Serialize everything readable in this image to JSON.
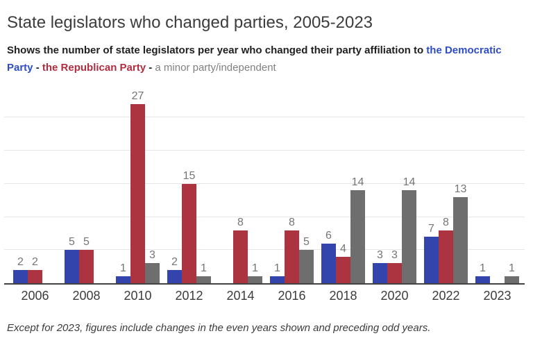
{
  "header": {
    "title": "State legislators who changed parties, 2005-2023",
    "subtitle": {
      "prefix": "Shows the number of state legislators per year who changed their party affiliation to ",
      "democratic": "the Democratic Party",
      "separator": " - ",
      "republican": "the Republican Party",
      "minor": "a minor party/independent"
    }
  },
  "colors": {
    "democratic": "#3345AC",
    "republican": "#AC3340",
    "minor": "#6E6E6E",
    "subtitle_democratic": "#2D4CC8",
    "subtitle_republican": "#B02C3F",
    "subtitle_minor": "#808080",
    "value_label": "#757575",
    "gridline": "#E6E6E6",
    "axis": "#424242"
  },
  "chart_data": {
    "type": "bar",
    "title": "State legislators who changed parties, 2005-2023",
    "xlabel": "",
    "ylabel": "",
    "categories": [
      "2006",
      "2008",
      "2010",
      "2012",
      "2014",
      "2016",
      "2018",
      "2020",
      "2022",
      "2023"
    ],
    "series": [
      {
        "name": "Democratic Party",
        "color_key": "democratic",
        "values": [
          2,
          5,
          1,
          2,
          0,
          1,
          6,
          3,
          7,
          1
        ]
      },
      {
        "name": "Republican Party",
        "color_key": "republican",
        "values": [
          2,
          5,
          27,
          15,
          8,
          8,
          4,
          3,
          8,
          0
        ]
      },
      {
        "name": "Minor party/independent",
        "color_key": "minor",
        "values": [
          0,
          0,
          3,
          1,
          1,
          5,
          14,
          14,
          13,
          1
        ]
      }
    ],
    "ylim": [
      0,
      30.5
    ],
    "gridline_values": [
      5,
      10,
      15,
      20,
      25
    ],
    "grid": true,
    "legend_position": "in-subtitle",
    "bar_labels_visible": true,
    "zero_bars_hidden": true
  },
  "footer": {
    "note": "Except for 2023, figures include changes in the even years shown and preceding odd years."
  }
}
